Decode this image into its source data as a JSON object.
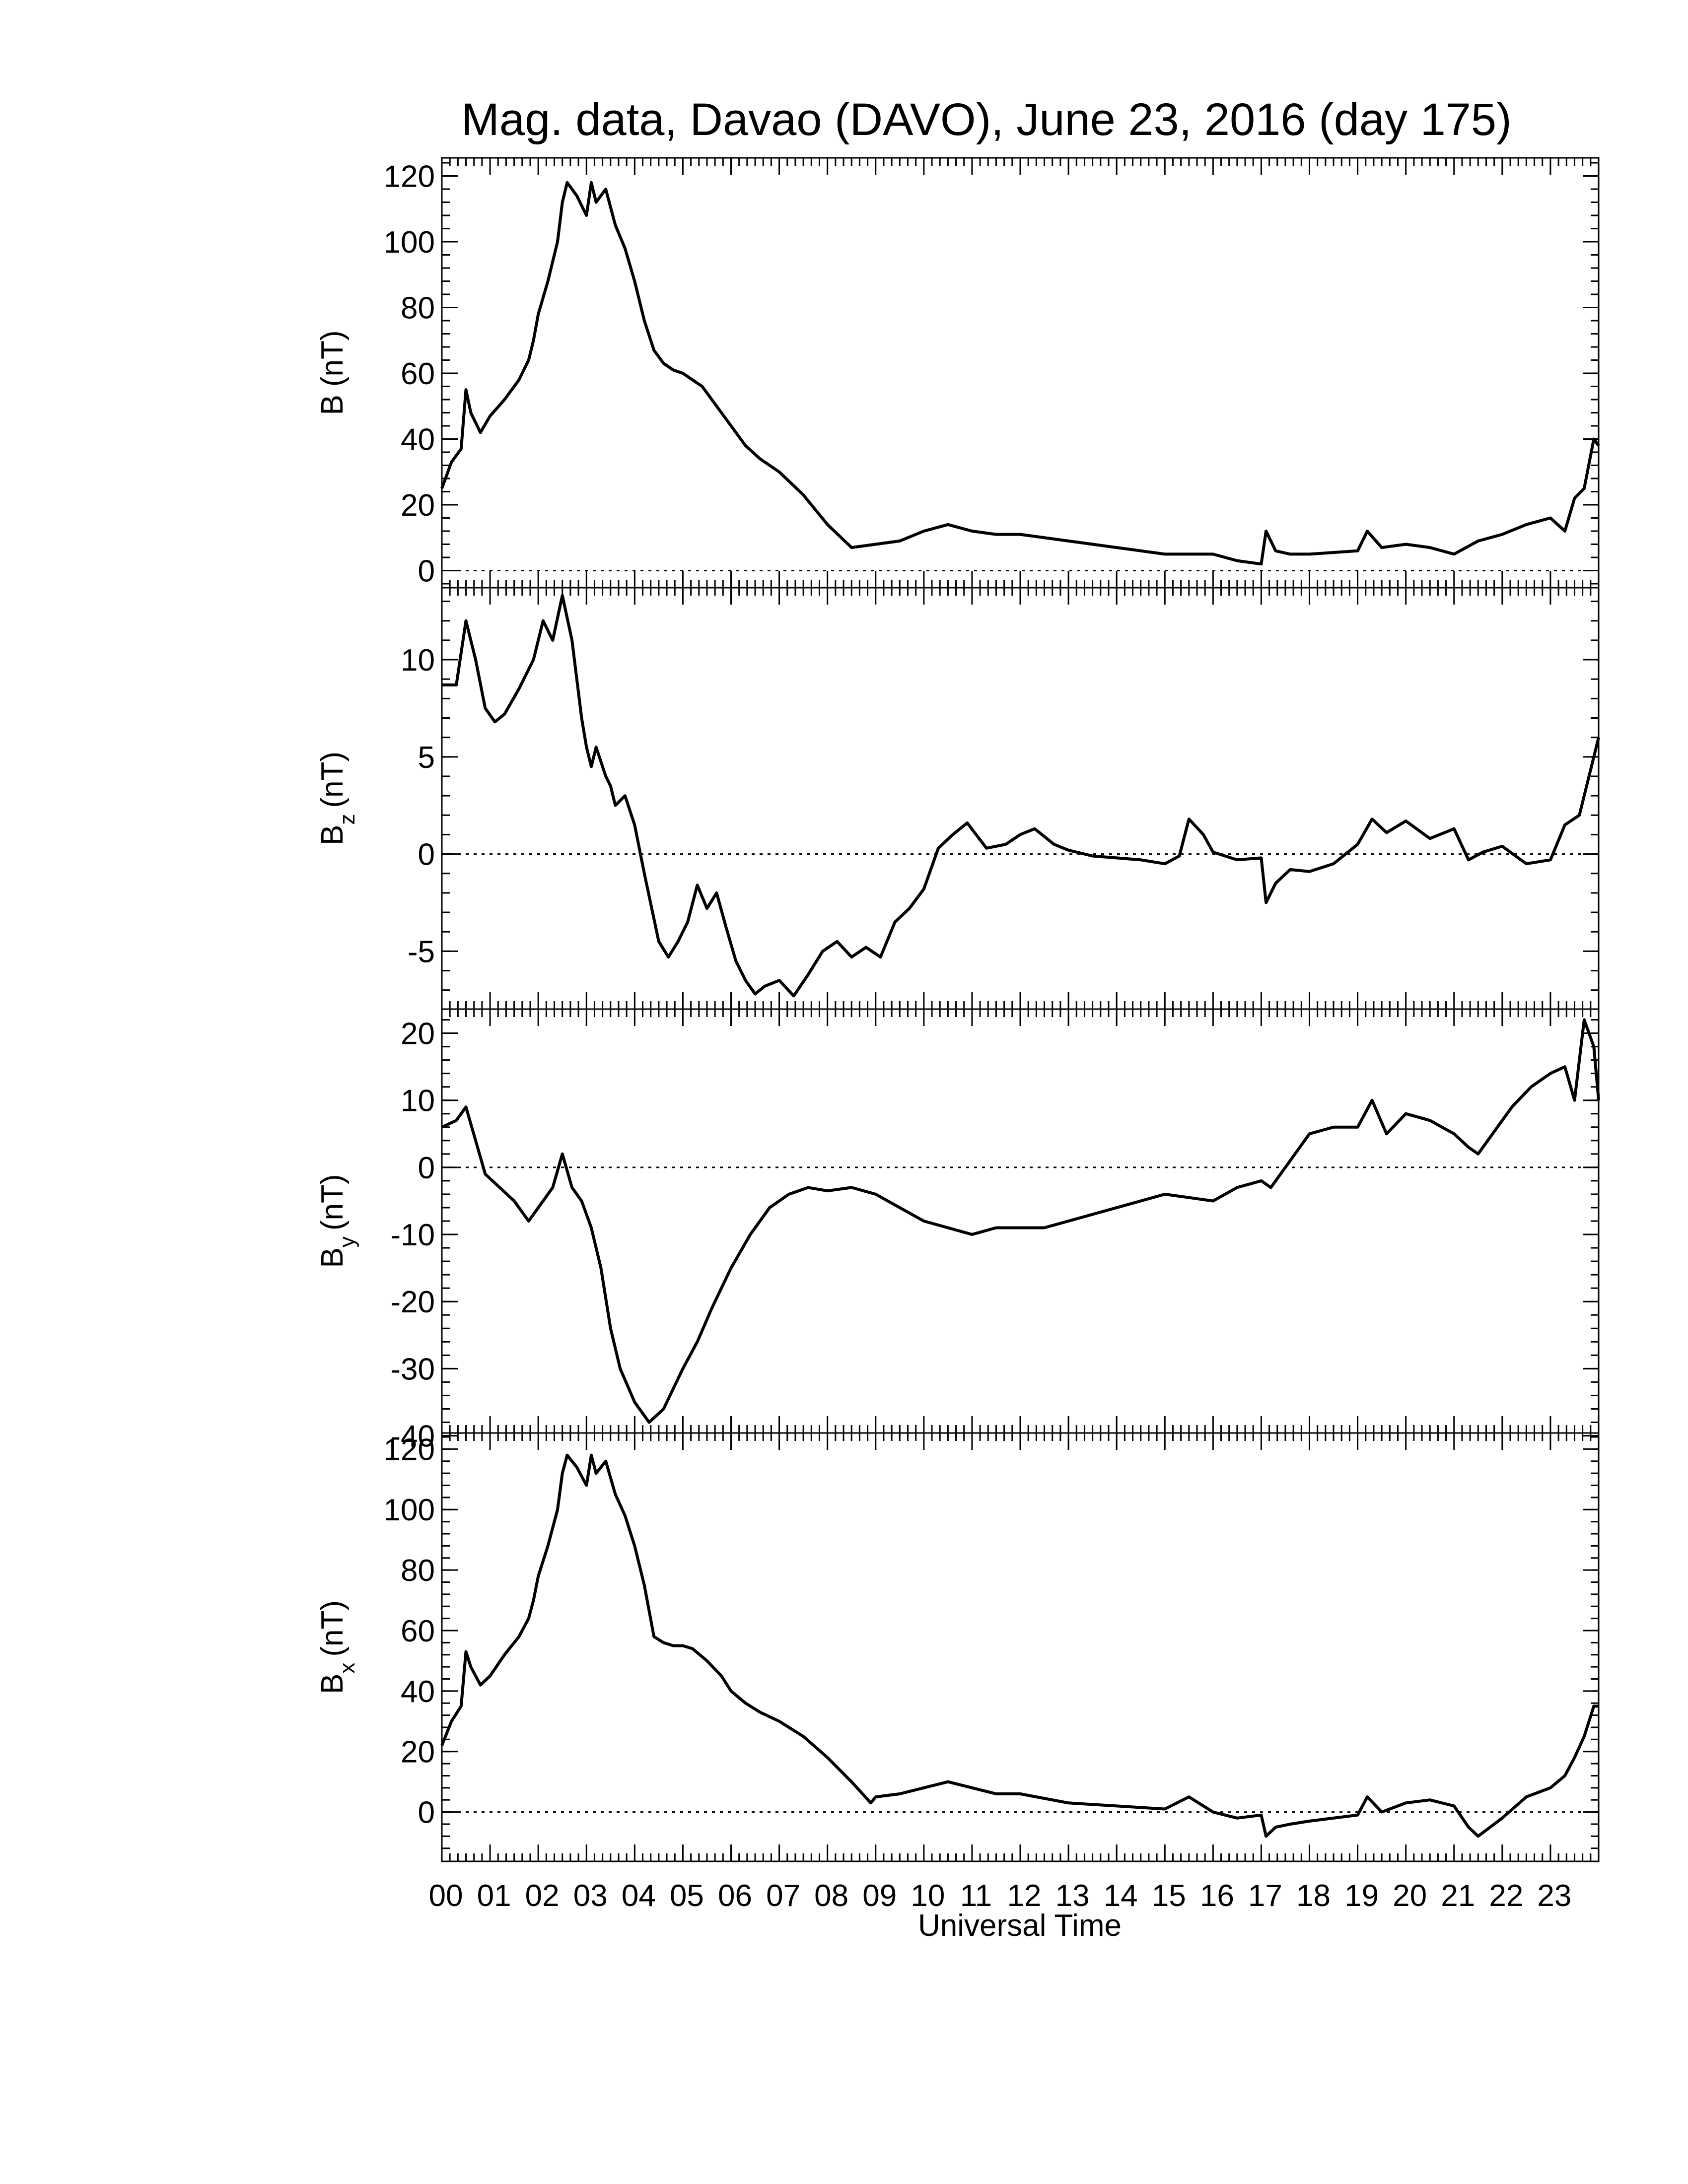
{
  "chart_data": {
    "type": "line",
    "title": "Mag. data, Davao (DAVO), June 23, 2016 (day 175)",
    "xlabel": "Universal Time",
    "x_tick_labels": [
      "00",
      "01",
      "02",
      "03",
      "04",
      "05",
      "06",
      "07",
      "08",
      "09",
      "10",
      "11",
      "12",
      "13",
      "14",
      "15",
      "16",
      "17",
      "18",
      "19",
      "20",
      "21",
      "22",
      "23"
    ],
    "xlim": [
      0,
      24
    ],
    "panels": [
      {
        "id": "B",
        "ylabel_main": "B",
        "ylabel_sub": "",
        "ylabel_unit": "(nT)",
        "ylim": [
          -4,
          124
        ],
        "yticks": [
          0,
          20,
          40,
          60,
          80,
          100,
          120
        ],
        "ytick_labels": [
          "0",
          "20",
          "40",
          "60",
          "80",
          "100",
          "120"
        ],
        "x": [
          0,
          0.2,
          0.4,
          0.5,
          0.6,
          0.8,
          1.0,
          1.3,
          1.6,
          1.8,
          1.9,
          2.0,
          2.2,
          2.4,
          2.5,
          2.6,
          2.8,
          3.0,
          3.1,
          3.2,
          3.4,
          3.6,
          3.8,
          4.0,
          4.2,
          4.4,
          4.6,
          4.8,
          5.0,
          5.2,
          5.4,
          5.6,
          5.8,
          6.0,
          6.3,
          6.6,
          7.0,
          7.5,
          8.0,
          8.5,
          9.0,
          9.5,
          10.0,
          10.5,
          11.0,
          11.5,
          12.0,
          13.0,
          14.0,
          15.0,
          16.0,
          16.5,
          17.0,
          17.1,
          17.3,
          17.6,
          18.0,
          19.0,
          19.2,
          19.5,
          20.0,
          20.5,
          21.0,
          21.5,
          22.0,
          22.5,
          23.0,
          23.3,
          23.5,
          23.7,
          23.9,
          24.0
        ],
        "y": [
          25,
          33,
          37,
          55,
          48,
          42,
          47,
          52,
          58,
          64,
          70,
          78,
          88,
          100,
          112,
          118,
          114,
          108,
          118,
          112,
          116,
          105,
          98,
          88,
          76,
          67,
          63,
          61,
          60,
          58,
          56,
          52,
          48,
          44,
          38,
          34,
          30,
          23,
          14,
          7,
          8,
          9,
          12,
          14,
          12,
          11,
          11,
          9,
          7,
          5,
          5,
          3,
          2,
          12,
          6,
          5,
          5,
          6,
          12,
          7,
          8,
          7,
          5,
          9,
          11,
          14,
          16,
          12,
          22,
          25,
          40,
          38
        ]
      },
      {
        "id": "Bz",
        "ylabel_main": "B",
        "ylabel_sub": "z",
        "ylabel_unit": "(nT)",
        "ylim": [
          -7.8,
          13.5
        ],
        "yticks": [
          -5,
          0,
          5,
          10
        ],
        "ytick_labels": [
          "-5",
          "0",
          "5",
          "10"
        ],
        "x": [
          0,
          0.3,
          0.5,
          0.7,
          0.9,
          1.1,
          1.3,
          1.6,
          1.9,
          2.1,
          2.3,
          2.5,
          2.7,
          2.9,
          3.0,
          3.1,
          3.2,
          3.4,
          3.5,
          3.6,
          3.8,
          4.0,
          4.2,
          4.5,
          4.7,
          4.9,
          5.1,
          5.3,
          5.5,
          5.7,
          5.9,
          6.1,
          6.3,
          6.5,
          6.7,
          7.0,
          7.3,
          7.6,
          7.9,
          8.2,
          8.5,
          8.8,
          9.1,
          9.4,
          9.7,
          10.0,
          10.3,
          10.6,
          10.9,
          11.3,
          11.7,
          12.0,
          12.3,
          12.7,
          13.0,
          13.5,
          14.0,
          14.5,
          15.0,
          15.3,
          15.5,
          15.8,
          16.0,
          16.5,
          17.0,
          17.1,
          17.3,
          17.6,
          18.0,
          18.5,
          19.0,
          19.3,
          19.6,
          20.0,
          20.5,
          21.0,
          21.3,
          21.6,
          22.0,
          22.5,
          23.0,
          23.3,
          23.6,
          23.8,
          24.0
        ],
        "y": [
          8.7,
          8.7,
          12,
          10,
          7.5,
          6.8,
          7.2,
          8.5,
          10,
          12,
          11,
          13.3,
          11,
          7,
          5.5,
          4.5,
          5.5,
          4,
          3.5,
          2.5,
          3,
          1.5,
          -1,
          -4.5,
          -5.3,
          -4.5,
          -3.5,
          -1.6,
          -2.8,
          -2.0,
          -3.8,
          -5.5,
          -6.5,
          -7.2,
          -6.8,
          -6.5,
          -7.3,
          -6.2,
          -5.0,
          -4.5,
          -5.3,
          -4.8,
          -5.3,
          -3.5,
          -2.8,
          -1.8,
          0.3,
          1.0,
          1.6,
          0.3,
          0.5,
          1.0,
          1.3,
          0.5,
          0.2,
          -0.1,
          -0.2,
          -0.3,
          -0.5,
          -0.1,
          1.8,
          1.0,
          0.1,
          -0.3,
          -0.2,
          -2.5,
          -1.5,
          -0.8,
          -0.9,
          -0.5,
          0.5,
          1.8,
          1.1,
          1.7,
          0.8,
          1.3,
          -0.3,
          0.1,
          0.4,
          -0.5,
          -0.3,
          1.5,
          2.0,
          4.0,
          6.0
        ]
      },
      {
        "id": "By",
        "ylabel_main": "B",
        "ylabel_sub": "y",
        "ylabel_unit": "(nT)",
        "ylim": [
          -39,
          23
        ],
        "yticks": [
          -40,
          -30,
          -20,
          -10,
          0,
          10,
          20
        ],
        "ytick_labels": [
          "-40",
          "-30",
          "-20",
          "-10",
          "0",
          "10",
          "20"
        ],
        "x": [
          0,
          0.3,
          0.5,
          0.7,
          0.9,
          1.2,
          1.5,
          1.8,
          2.1,
          2.3,
          2.5,
          2.7,
          2.9,
          3.1,
          3.3,
          3.5,
          3.7,
          4.0,
          4.3,
          4.6,
          4.8,
          5.0,
          5.3,
          5.6,
          6.0,
          6.4,
          6.8,
          7.2,
          7.6,
          8.0,
          8.5,
          9.0,
          9.5,
          10.0,
          10.5,
          11.0,
          11.5,
          12.0,
          12.5,
          13.0,
          13.5,
          14.0,
          14.5,
          15.0,
          15.5,
          16.0,
          16.5,
          17.0,
          17.2,
          17.5,
          18.0,
          18.5,
          19.0,
          19.3,
          19.6,
          20.0,
          20.5,
          21.0,
          21.3,
          21.5,
          21.8,
          22.2,
          22.6,
          23.0,
          23.3,
          23.5,
          23.7,
          23.9,
          24.0
        ],
        "y": [
          6,
          7,
          9,
          4,
          -1,
          -3,
          -5,
          -8,
          -5,
          -3,
          2,
          -3,
          -5,
          -9,
          -15,
          -24,
          -30,
          -35,
          -38,
          -36,
          -33,
          -30,
          -26,
          -21,
          -15,
          -10,
          -6,
          -4,
          -3,
          -3.5,
          -3,
          -4,
          -6,
          -8,
          -9,
          -10,
          -9,
          -9,
          -9,
          -8,
          -7,
          -6,
          -5,
          -4,
          -4.5,
          -5,
          -3,
          -2,
          -3,
          0,
          5,
          6,
          6,
          10,
          5,
          8,
          7,
          5,
          3,
          2,
          5,
          9,
          12,
          14,
          15,
          10,
          22,
          18,
          10
        ]
      },
      {
        "id": "Bx",
        "ylabel_main": "B",
        "ylabel_sub": "x",
        "ylabel_unit": "(nT)",
        "ylim": [
          -15,
          124
        ],
        "yticks": [
          0,
          20,
          40,
          60,
          80,
          100,
          120
        ],
        "ytick_labels": [
          "0",
          "20",
          "40",
          "60",
          "80",
          "100",
          "120"
        ],
        "x": [
          0,
          0.2,
          0.4,
          0.5,
          0.6,
          0.8,
          1.0,
          1.3,
          1.6,
          1.8,
          1.9,
          2.0,
          2.2,
          2.4,
          2.5,
          2.6,
          2.8,
          3.0,
          3.1,
          3.2,
          3.4,
          3.6,
          3.8,
          4.0,
          4.2,
          4.4,
          4.6,
          4.8,
          5.0,
          5.2,
          5.5,
          5.8,
          6.0,
          6.3,
          6.6,
          7.0,
          7.5,
          8.0,
          8.5,
          8.9,
          9.0,
          9.5,
          10.0,
          10.5,
          11.0,
          11.5,
          12.0,
          13.0,
          14.0,
          15.0,
          15.5,
          16.0,
          16.5,
          17.0,
          17.1,
          17.3,
          17.6,
          18.0,
          19.0,
          19.2,
          19.5,
          20.0,
          20.5,
          21.0,
          21.3,
          21.5,
          22.0,
          22.5,
          23.0,
          23.3,
          23.5,
          23.7,
          23.9,
          24.0
        ],
        "y": [
          22,
          30,
          35,
          53,
          48,
          42,
          45,
          52,
          58,
          64,
          70,
          78,
          88,
          100,
          112,
          118,
          114,
          108,
          118,
          112,
          116,
          105,
          98,
          88,
          75,
          58,
          56,
          55,
          55,
          54,
          50,
          45,
          40,
          36,
          33,
          30,
          25,
          18,
          10,
          3,
          5,
          6,
          8,
          10,
          8,
          6,
          6,
          3,
          2,
          1,
          5,
          0,
          -2,
          -1,
          -8,
          -5,
          -4,
          -3,
          -1,
          5,
          0,
          3,
          4,
          2,
          -5,
          -8,
          -2,
          5,
          8,
          12,
          18,
          25,
          35,
          35
        ]
      }
    ]
  }
}
